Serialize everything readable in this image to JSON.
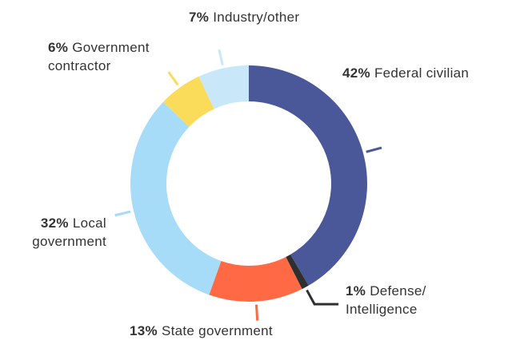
{
  "chart_data": {
    "type": "donut",
    "categories": [
      "Federal civilian",
      "Defense/ Intelligence",
      "State government",
      "Local government",
      "Government contractor",
      "Industry/other"
    ],
    "values": [
      42,
      1,
      13,
      32,
      6,
      7
    ],
    "value_labels": [
      "42%",
      "1%",
      "13%",
      "32%",
      "6%",
      "7%"
    ],
    "colors": [
      "#4a5899",
      "#2f2f2f",
      "#ff6a45",
      "#a6dcf7",
      "#fadc5a",
      "#c8e8fa"
    ]
  }
}
